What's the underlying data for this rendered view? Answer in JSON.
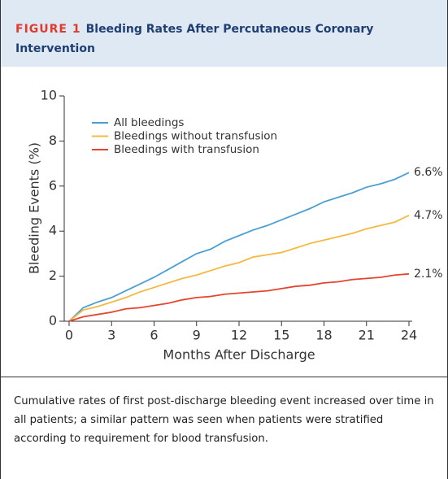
{
  "figure_label": "FIGURE 1",
  "caption": "Cumulative rates of first post-discharge bleeding event increased over time in all patients; a similar pattern was seen when patients were stratified according to requirement for blood transfusion.",
  "chart_data": {
    "type": "line",
    "title": "Bleeding Rates After Percutaneous Coronary Intervention",
    "x_label": "Months After Discharge",
    "y_label": "Bleeding Events (%)",
    "x": [
      0,
      1,
      2,
      3,
      4,
      5,
      6,
      7,
      8,
      9,
      10,
      11,
      12,
      13,
      14,
      15,
      16,
      17,
      18,
      19,
      20,
      21,
      22,
      23,
      24
    ],
    "xlim": [
      0,
      24
    ],
    "xticks": [
      0,
      3,
      6,
      9,
      12,
      15,
      18,
      21,
      24
    ],
    "ylim": [
      0,
      10
    ],
    "yticks": [
      0,
      2,
      4,
      6,
      8,
      10
    ],
    "legend": "upper left",
    "series": [
      {
        "name": "All bleedings",
        "color": "#4a9fd4",
        "values": [
          0,
          0.6,
          0.85,
          1.05,
          1.35,
          1.65,
          1.95,
          2.3,
          2.65,
          3.0,
          3.2,
          3.55,
          3.8,
          4.05,
          4.25,
          4.5,
          4.75,
          5.0,
          5.3,
          5.5,
          5.7,
          5.95,
          6.1,
          6.3,
          6.6
        ],
        "value_labels": [
          null,
          null,
          null,
          null,
          null,
          null,
          null,
          null,
          null,
          null,
          null,
          null,
          null,
          null,
          null,
          null,
          null,
          null,
          null,
          null,
          null,
          null,
          null,
          null,
          "6.6%"
        ]
      },
      {
        "name": "Bleedings without transfusion",
        "color": "#f5b942",
        "values": [
          0,
          0.5,
          0.65,
          0.85,
          1.05,
          1.3,
          1.5,
          1.7,
          1.9,
          2.05,
          2.25,
          2.45,
          2.6,
          2.85,
          2.95,
          3.05,
          3.25,
          3.45,
          3.6,
          3.75,
          3.9,
          4.1,
          4.25,
          4.4,
          4.7
        ],
        "value_labels": [
          null,
          null,
          null,
          null,
          null,
          null,
          null,
          null,
          null,
          null,
          null,
          null,
          null,
          null,
          null,
          null,
          null,
          null,
          null,
          null,
          null,
          null,
          null,
          null,
          "4.7%"
        ]
      },
      {
        "name": "Bleedings with transfusion",
        "color": "#e3452f",
        "values": [
          0,
          0.2,
          0.3,
          0.4,
          0.55,
          0.6,
          0.7,
          0.8,
          0.95,
          1.05,
          1.1,
          1.2,
          1.25,
          1.3,
          1.35,
          1.45,
          1.55,
          1.6,
          1.7,
          1.75,
          1.85,
          1.9,
          1.95,
          2.05,
          2.1
        ],
        "value_labels": [
          null,
          null,
          null,
          null,
          null,
          null,
          null,
          null,
          null,
          null,
          null,
          null,
          null,
          null,
          null,
          null,
          null,
          null,
          null,
          null,
          null,
          null,
          null,
          null,
          "2.1%"
        ]
      }
    ]
  }
}
